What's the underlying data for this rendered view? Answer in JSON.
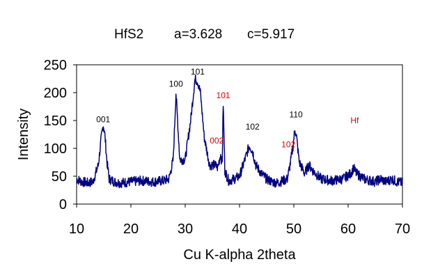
{
  "chart_data": {
    "type": "line",
    "title_parts": [
      "HfS2",
      "a=3.628",
      "c=5.917"
    ],
    "xlabel": "Cu K-alpha  2theta",
    "ylabel": "Intensity",
    "xlim": [
      10,
      70
    ],
    "ylim": [
      0,
      250
    ],
    "x_ticks": [
      10,
      20,
      30,
      40,
      50,
      60,
      70
    ],
    "y_ticks": [
      0,
      50,
      100,
      150,
      200,
      250
    ],
    "grid": false,
    "line_color": "#000080",
    "series": [
      {
        "x": [
          10,
          11,
          12,
          13,
          14,
          14.5,
          14.9,
          15.2,
          15.6,
          16,
          17,
          18,
          20,
          22,
          24,
          26,
          27,
          27.8,
          28.3,
          28.6,
          29,
          30,
          31,
          31.8,
          32.3,
          32.8,
          33.5,
          34.5,
          35.5,
          36,
          36.5,
          36.8,
          37,
          37.3,
          38,
          39,
          40,
          41,
          41.8,
          42.4,
          43,
          44,
          45,
          46,
          47,
          48,
          48.8,
          49.3,
          49.8,
          50.2,
          50.5,
          51,
          52,
          52.8,
          53.5,
          55,
          57,
          59,
          60.5,
          61,
          61.5,
          63,
          65,
          66,
          67,
          68,
          69,
          70
        ],
        "y": [
          45,
          40,
          38,
          40,
          70,
          115,
          143,
          125,
          75,
          45,
          40,
          38,
          40,
          42,
          40,
          42,
          45,
          80,
          200,
          150,
          80,
          80,
          150,
          225,
          220,
          200,
          120,
          70,
          70,
          65,
          90,
          70,
          180,
          60,
          42,
          45,
          50,
          80,
          105,
          95,
          70,
          55,
          45,
          40,
          38,
          42,
          45,
          70,
          100,
          135,
          120,
          75,
          55,
          70,
          60,
          45,
          42,
          45,
          55,
          65,
          55,
          45,
          40,
          45,
          40,
          45,
          40,
          38
        ]
      }
    ],
    "annotations": [
      {
        "text": "001",
        "x": 14.9,
        "y": 143,
        "color": "#000000"
      },
      {
        "text": "100",
        "x": 28.3,
        "y": 207,
        "color": "#000000"
      },
      {
        "text": "101",
        "x": 32.3,
        "y": 229,
        "color": "#000000"
      },
      {
        "text": "101",
        "x": 37.0,
        "y": 186,
        "color": "#dd0000"
      },
      {
        "text": "002",
        "x": 35.8,
        "y": 105,
        "color": "#dd0000"
      },
      {
        "text": "102",
        "x": 42.4,
        "y": 130,
        "color": "#000000"
      },
      {
        "text": "102",
        "x": 49.0,
        "y": 98,
        "color": "#dd0000"
      },
      {
        "text": "110",
        "x": 50.4,
        "y": 152,
        "color": "#000000"
      },
      {
        "text": "Hf",
        "x": 61.2,
        "y": 141,
        "color": "#dd0000"
      }
    ]
  }
}
